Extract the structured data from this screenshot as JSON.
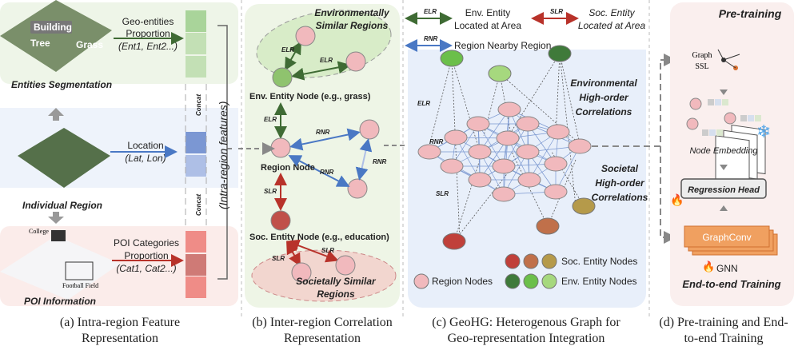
{
  "panel_a": {
    "entities_segmentation": "Entities Segmentation",
    "seg_labels": [
      "Building",
      "Tree",
      "Grass"
    ],
    "geo_entities": [
      "Geo-entities",
      "Proportion",
      "(Ent1, Ent2...)"
    ],
    "location": [
      "Location",
      "(Lat, Lon)"
    ],
    "individual_region": "Individual Region",
    "poi_categories": [
      "POI Categories",
      "Proportion",
      "(Cat1, Cat2...)"
    ],
    "poi_information": "POI Information",
    "map_labels": [
      "College",
      "Football Field"
    ],
    "concat": "Concat",
    "intra_features": "(Intra-region features)",
    "caption": [
      "(a) Intra-region Feature",
      "Representation"
    ]
  },
  "panel_b": {
    "env_similar": [
      "Environmentally",
      "Similar Regions"
    ],
    "elr": "ELR",
    "rnr": "RNR",
    "slr": "SLR",
    "env_node": "Env. Entity Node (e.g., grass)",
    "region_node": "Region Node",
    "soc_node": "Soc. Entity Node (e.g., education)",
    "soc_similar": [
      "Societally Similar",
      "Regions"
    ],
    "caption": [
      "(b) Inter-region Correlation",
      "Representation"
    ]
  },
  "panel_c": {
    "legend_elr": [
      "Env. Entity",
      "Located at Area"
    ],
    "legend_slr": [
      "Soc. Entity",
      "Located at Area"
    ],
    "legend_rnr": "Region Nearby Region",
    "env_high": [
      "Environmental",
      "High-order",
      "Correlations"
    ],
    "soc_high": [
      "Societal",
      "High-order",
      "Correlations"
    ],
    "soc_nodes": "Soc. Entity Nodes",
    "env_nodes": "Env. Entity Nodes",
    "region_nodes": "Region Nodes",
    "caption": [
      "(c) GeoHG: Heterogenous Graph for",
      "Geo-representation Integration"
    ]
  },
  "panel_d": {
    "pretraining": "Pre-training",
    "graph_ssl": [
      "Graph",
      "SSL"
    ],
    "node_embedding": "Node Embedding",
    "regression_head": "Regression Head",
    "graphconv": "GraphConv",
    "gnn": "GNN",
    "end_to_end": "End-to-end Training",
    "caption": [
      "(d) Pre-training and End-",
      "to-end Training"
    ]
  },
  "colors": {
    "elr": "#3f6b34",
    "slr": "#b8322a",
    "rnr": "#4a78c4",
    "region": "#f1b9bd"
  }
}
